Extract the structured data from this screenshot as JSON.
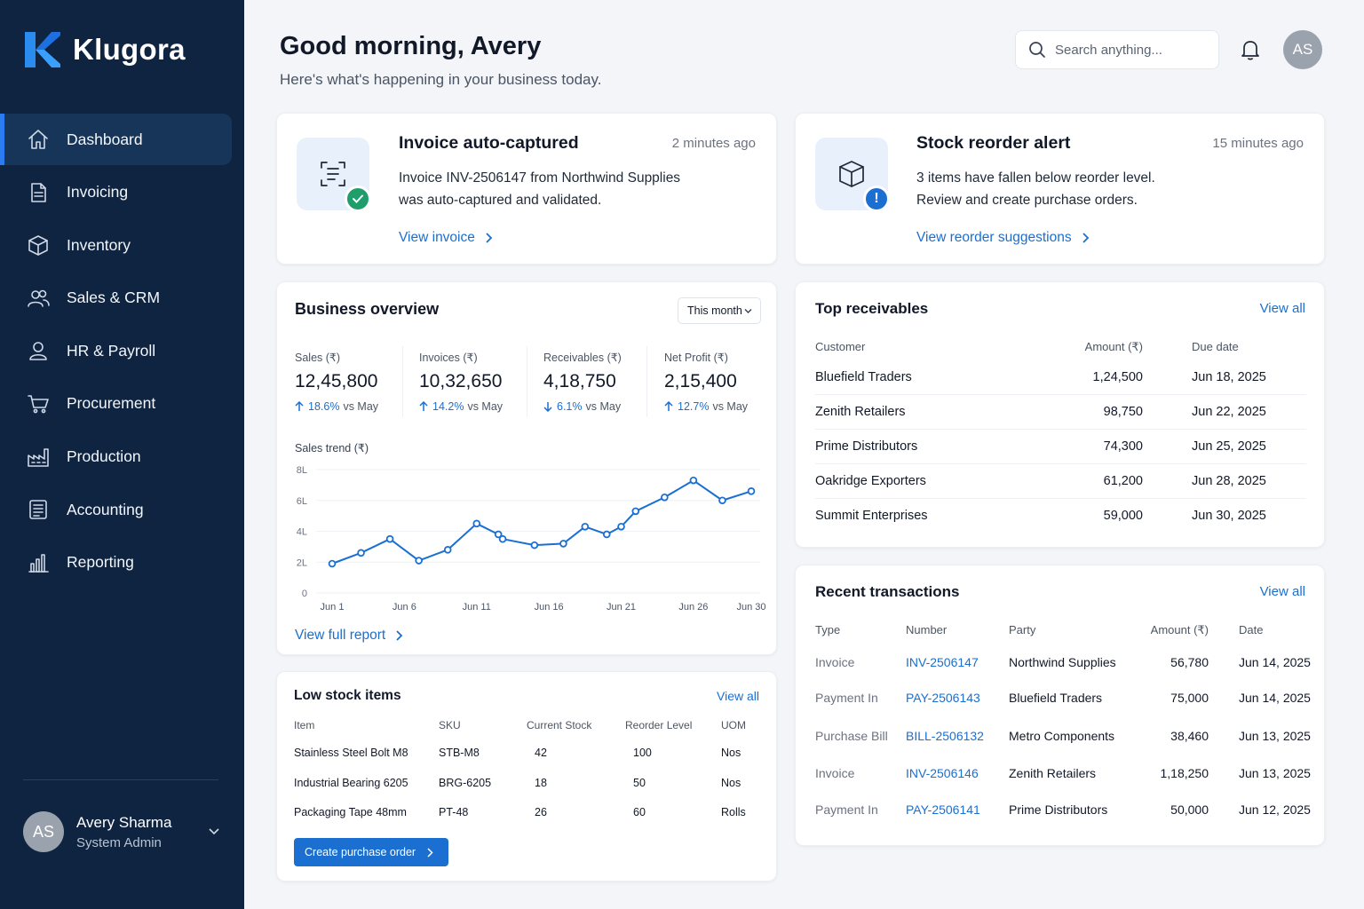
{
  "brand": {
    "name": "Klugora"
  },
  "sidebar": {
    "items": [
      {
        "label": "Dashboard",
        "icon": "home-icon"
      },
      {
        "label": "Invoicing",
        "icon": "document-icon"
      },
      {
        "label": "Inventory",
        "icon": "box-icon"
      },
      {
        "label": "Sales & CRM",
        "icon": "users-icon"
      },
      {
        "label": "HR & Payroll",
        "icon": "user-icon"
      },
      {
        "label": "Procurement",
        "icon": "cart-icon"
      },
      {
        "label": "Production",
        "icon": "factory-icon"
      },
      {
        "label": "Accounting",
        "icon": "ledger-icon"
      },
      {
        "label": "Reporting",
        "icon": "bar-chart-icon"
      }
    ],
    "active": "Dashboard",
    "user": {
      "initials": "AS",
      "name": "Avery Sharma",
      "role": "System Admin"
    }
  },
  "header": {
    "greeting": "Good morning, Avery",
    "subtitle": "Here's what's happening in your business today.",
    "search_placeholder": "Search anything...",
    "avatar_initials": "AS"
  },
  "notifications": [
    {
      "title": "Invoice auto-captured",
      "time": "2 minutes ago",
      "line1": "Invoice INV-2506147 from Northwind Supplies",
      "line2": "was auto-captured and validated.",
      "action": "View invoice",
      "icon": "scan-document-icon",
      "badge_color": "#1f9d6b"
    },
    {
      "title": "Stock reorder alert",
      "time": "15 minutes ago",
      "line1": "3 items have fallen below reorder level.",
      "line2": "Review and create purchase orders.",
      "action": "View reorder suggestions",
      "icon": "package-icon",
      "badge_color": "#1a6fd1"
    }
  ],
  "overview": {
    "title": "Business overview",
    "period": "This month",
    "kpis": [
      {
        "label": "Sales (₹)",
        "value": "12,45,800",
        "change": "18.6%",
        "direction": "up",
        "suffix": "vs May"
      },
      {
        "label": "Invoices (₹)",
        "value": "10,32,650",
        "change": "14.2%",
        "direction": "up",
        "suffix": "vs May"
      },
      {
        "label": "Receivables (₹)",
        "value": "4,18,750",
        "change": "6.1%",
        "direction": "down",
        "suffix": "vs May"
      },
      {
        "label": "Net Profit (₹)",
        "value": "2,15,400",
        "change": "12.7%",
        "direction": "up",
        "suffix": "vs May"
      }
    ],
    "trend_label": "Sales trend (₹)",
    "report_link": "View full report"
  },
  "chart_data": {
    "type": "line",
    "title": "Sales trend (₹)",
    "x": [
      1,
      3,
      5,
      7,
      9,
      11,
      12.5,
      12.8,
      15,
      17,
      18.5,
      20,
      21,
      22,
      24,
      26,
      28,
      30
    ],
    "y": [
      1.9,
      2.6,
      3.5,
      2.1,
      2.8,
      4.5,
      3.8,
      3.5,
      3.1,
      3.2,
      4.3,
      3.8,
      4.3,
      5.3,
      6.2,
      7.3,
      6.0,
      6.6
    ],
    "x_tick_labels": [
      "Jun 1",
      "Jun 6",
      "Jun 11",
      "Jun 16",
      "Jun 21",
      "Jun 26",
      "Jun 30"
    ],
    "x_ticks": [
      1,
      6,
      11,
      16,
      21,
      26,
      30
    ],
    "y_tick_labels": [
      "0",
      "2L",
      "4L",
      "6L",
      "8L"
    ],
    "y_ticks": [
      0,
      2,
      4,
      6,
      8
    ],
    "xlim": [
      1,
      30
    ],
    "ylim": [
      0,
      8
    ],
    "grid": true,
    "color": "#1a6fd1"
  },
  "low_stock": {
    "title": "Low stock items",
    "view_all": "View all",
    "columns": [
      "Item",
      "SKU",
      "Current Stock",
      "Reorder Level",
      "UOM"
    ],
    "rows": [
      [
        "Stainless Steel Bolt M8",
        "STB-M8",
        "42",
        "100",
        "Nos"
      ],
      [
        "Industrial Bearing 6205",
        "BRG-6205",
        "18",
        "50",
        "Nos"
      ],
      [
        "Packaging Tape 48mm",
        "PT-48",
        "26",
        "60",
        "Rolls"
      ]
    ],
    "button": "Create purchase order"
  },
  "receivables": {
    "title": "Top receivables",
    "view_all": "View all",
    "columns": [
      "Customer",
      "Amount (₹)",
      "Due date"
    ],
    "rows": [
      [
        "Bluefield Traders",
        "1,24,500",
        "Jun 18, 2025"
      ],
      [
        "Zenith Retailers",
        "98,750",
        "Jun 22, 2025"
      ],
      [
        "Prime Distributors",
        "74,300",
        "Jun 25, 2025"
      ],
      [
        "Oakridge Exporters",
        "61,200",
        "Jun 28, 2025"
      ],
      [
        "Summit Enterprises",
        "59,000",
        "Jun 30, 2025"
      ]
    ]
  },
  "transactions": {
    "title": "Recent transactions",
    "view_all": "View all",
    "columns": [
      "Type",
      "Number",
      "Party",
      "Amount (₹)",
      "Date"
    ],
    "rows": [
      [
        "Invoice",
        "INV-2506147",
        "Northwind Supplies",
        "56,780",
        "Jun 14, 2025"
      ],
      [
        "Payment In",
        "PAY-2506143",
        "Bluefield Traders",
        "75,000",
        "Jun 14, 2025"
      ],
      [
        "Purchase Bill",
        "BILL-2506132",
        "Metro Components",
        "38,460",
        "Jun 13, 2025"
      ],
      [
        "Invoice",
        "INV-2506146",
        "Zenith Retailers",
        "1,18,250",
        "Jun 13, 2025"
      ],
      [
        "Payment In",
        "PAY-2506141",
        "Prime Distributors",
        "50,000",
        "Jun 12, 2025"
      ]
    ]
  }
}
